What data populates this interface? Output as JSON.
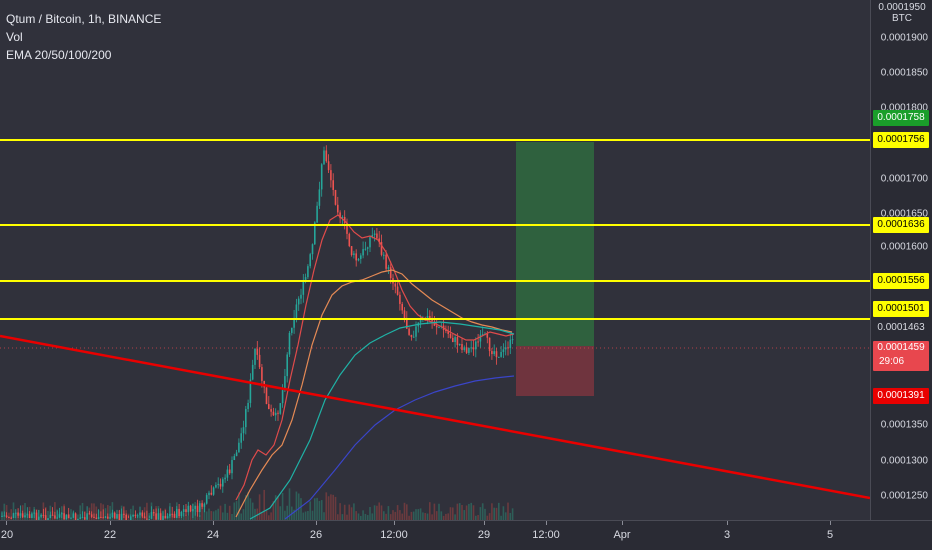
{
  "legend": {
    "title": "Qtum / Bitcoin, 1h, BINANCE",
    "vol": "Vol",
    "ema": "EMA 20/50/100/200"
  },
  "price_axis": {
    "currency": "BTC",
    "labels": [
      "0.0001950",
      "0.0001900",
      "0.0001850",
      "0.0001800",
      "0.0001700",
      "0.0001650",
      "0.0001600",
      "0.0001350",
      "0.0001300",
      "0.0001250"
    ]
  },
  "price_tags": {
    "target_upper": "0.0001758",
    "level_1": "0.0001756",
    "level_2": "0.0001636",
    "level_3": "0.0001556",
    "level_4": "0.0001501",
    "ema_value": "0.0001463",
    "current_price": "0.0001459",
    "countdown": "29:06",
    "stop_loss": "0.0001391"
  },
  "time_axis": {
    "labels": [
      "20",
      "22",
      "24",
      "26",
      "12:00",
      "29",
      "12:00",
      "Apr",
      "3",
      "5"
    ]
  },
  "colors": {
    "background": "#30313b",
    "support_resistance": "#ffff00",
    "trendline": "#e90000",
    "profit_zone": "#2f6a3f",
    "loss_zone": "#7a3540",
    "ema20": "#e04b4b",
    "ema50": "#e58a55",
    "ema100": "#1fb2a6",
    "ema200": "#3a45c9"
  }
}
